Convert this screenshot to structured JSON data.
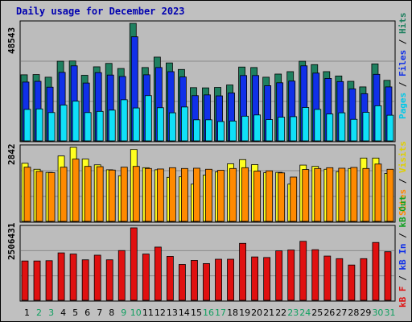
{
  "title": "Daily usage for December 2023",
  "colors": {
    "frame_bg": "#c0c0c0",
    "panel_bg": "#bcbcbc",
    "hits": "#1f8060",
    "files": "#1030e8",
    "pages": "#10e0f8",
    "visits": "#ffff20",
    "sites": "#ff8a00",
    "kbf": "#e01010",
    "kbin": "#1030e8",
    "kbout": "#10a020",
    "weekday_label": "#000000",
    "weekend_label": "#10a060",
    "title": "#0000b0"
  },
  "chart_data": [
    {
      "type": "bar",
      "panel": "hits-files-pages",
      "y_max_label": "48543",
      "ylim": [
        0,
        48543
      ],
      "grid": true,
      "categories": [
        "1",
        "2",
        "3",
        "4",
        "5",
        "6",
        "7",
        "8",
        "9",
        "10",
        "11",
        "12",
        "13",
        "14",
        "15",
        "16",
        "17",
        "18",
        "19",
        "20",
        "21",
        "22",
        "23",
        "24",
        "25",
        "26",
        "27",
        "28",
        "29",
        "30",
        "31"
      ],
      "legend": [
        "Pages",
        "Files",
        "Hits"
      ],
      "series": [
        {
          "name": "Hits",
          "values": [
            27300,
            27400,
            26300,
            32900,
            33000,
            27100,
            30600,
            32000,
            29900,
            48543,
            30300,
            34600,
            32200,
            29500,
            22000,
            21900,
            22100,
            23100,
            30500,
            30300,
            26300,
            27600,
            28600,
            32900,
            31500,
            28600,
            26800,
            24600,
            22300,
            31800,
            25000
          ]
        },
        {
          "name": "Files",
          "values": [
            24300,
            24600,
            22200,
            28300,
            31000,
            23900,
            28200,
            27200,
            26600,
            43000,
            27300,
            30300,
            28600,
            26400,
            18700,
            19000,
            18600,
            19800,
            27000,
            27000,
            22800,
            24000,
            24700,
            31000,
            28000,
            25800,
            24500,
            21500,
            19500,
            27500,
            22300
          ]
        },
        {
          "name": "Pages",
          "values": [
            13000,
            13200,
            11700,
            14800,
            16400,
            11700,
            12200,
            12700,
            17000,
            13600,
            18700,
            13700,
            11600,
            14000,
            8700,
            8700,
            8000,
            8200,
            10200,
            10700,
            8800,
            9800,
            10000,
            13800,
            13000,
            11100,
            11600,
            8900,
            11800,
            14500,
            10600
          ]
        }
      ]
    },
    {
      "type": "bar",
      "panel": "visits-sites",
      "y_max_label": "2842",
      "ylim": [
        0,
        2842
      ],
      "grid": true,
      "categories": [
        "1",
        "2",
        "3",
        "4",
        "5",
        "6",
        "7",
        "8",
        "9",
        "10",
        "11",
        "12",
        "13",
        "14",
        "15",
        "16",
        "17",
        "18",
        "19",
        "20",
        "21",
        "22",
        "23",
        "24",
        "25",
        "26",
        "27",
        "28",
        "29",
        "30",
        "31"
      ],
      "legend": [
        "Sites",
        "Visits"
      ],
      "series": [
        {
          "name": "Visits",
          "values": [
            2230,
            2000,
            1880,
            2510,
            2842,
            2390,
            2170,
            1980,
            1750,
            2760,
            2060,
            1980,
            1690,
            1710,
            1430,
            1780,
            1900,
            2210,
            2370,
            2180,
            1870,
            1880,
            1430,
            2160,
            2110,
            2000,
            1910,
            2030,
            2430,
            2430,
            1840
          ]
        },
        {
          "name": "Sites",
          "values": [
            2080,
            1920,
            1870,
            2080,
            2390,
            2110,
            2100,
            1970,
            2080,
            2110,
            2030,
            2010,
            2060,
            2030,
            2040,
            2000,
            1960,
            2030,
            2060,
            1930,
            1940,
            1860,
            1700,
            1990,
            2030,
            2060,
            2040,
            2070,
            2030,
            2200,
            2000
          ]
        }
      ]
    },
    {
      "type": "bar",
      "panel": "kbytes",
      "y_max_label": "2506431",
      "ylim": [
        0,
        2506431
      ],
      "grid": true,
      "categories": [
        "1",
        "2",
        "3",
        "4",
        "5",
        "6",
        "7",
        "8",
        "9",
        "10",
        "11",
        "12",
        "13",
        "14",
        "15",
        "16",
        "17",
        "18",
        "19",
        "20",
        "21",
        "22",
        "23",
        "24",
        "25",
        "26",
        "27",
        "28",
        "29",
        "30",
        "31"
      ],
      "legend": [
        "KB F",
        "KB In",
        "KB Out"
      ],
      "series": [
        {
          "name": "KB F",
          "values": [
            1360000,
            1360000,
            1370000,
            1640000,
            1600000,
            1400000,
            1560000,
            1400000,
            1720000,
            2506431,
            1600000,
            1840000,
            1520000,
            1240000,
            1380000,
            1270000,
            1420000,
            1420000,
            1970000,
            1500000,
            1480000,
            1710000,
            1740000,
            2040000,
            1750000,
            1530000,
            1440000,
            1220000,
            1440000,
            2000000,
            1680000
          ]
        }
      ]
    }
  ],
  "legends": {
    "top": {
      "pages": "Pages",
      "sep1": " / ",
      "files": "Files",
      "sep2": " / ",
      "hits": "Hits"
    },
    "mid": {
      "sites": "Sites",
      "sep1": " / ",
      "visits": "Visits"
    },
    "bot": {
      "kbf": "kB F",
      "sep1": " / ",
      "kbin": "kB In",
      "sep2": " / ",
      "kbout": "kB Out"
    }
  },
  "weekend_days": [
    2,
    3,
    9,
    10,
    16,
    17,
    23,
    24,
    30,
    31
  ]
}
